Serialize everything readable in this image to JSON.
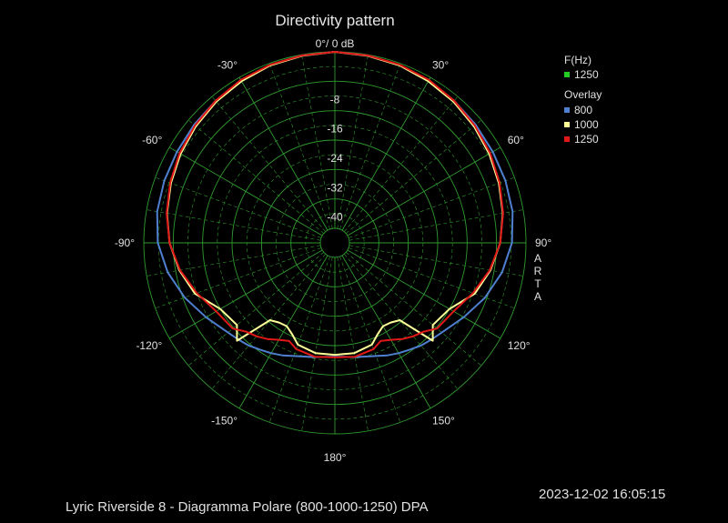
{
  "chart_data": {
    "type": "polar",
    "title": "Directivity pattern",
    "top_label": "0°/ 0 dB",
    "radial_unit": "dB",
    "radial_range": [
      -48,
      0
    ],
    "radial_ticks": [
      {
        "value": -8,
        "label": "-8"
      },
      {
        "value": -16,
        "label": "-16"
      },
      {
        "value": -24,
        "label": "-24"
      },
      {
        "value": -32,
        "label": "-32"
      },
      {
        "value": -40,
        "label": "-40"
      }
    ],
    "angle_labels": [
      {
        "angle": -30,
        "label": "-30°"
      },
      {
        "angle": 30,
        "label": "30°"
      },
      {
        "angle": -60,
        "label": "-60°"
      },
      {
        "angle": 60,
        "label": "60°"
      },
      {
        "angle": -90,
        "label": "-90°"
      },
      {
        "angle": 90,
        "label": "90°"
      },
      {
        "angle": -120,
        "label": "-120°"
      },
      {
        "angle": 120,
        "label": "120°"
      },
      {
        "angle": -150,
        "label": "-150°"
      },
      {
        "angle": 150,
        "label": "150°"
      },
      {
        "angle": 180,
        "label": "180°"
      }
    ],
    "angles": [
      0,
      10,
      20,
      30,
      40,
      50,
      60,
      70,
      80,
      90,
      100,
      110,
      120,
      130,
      135,
      140,
      145,
      150,
      155,
      160,
      170,
      180
    ],
    "series": [
      {
        "name": "800",
        "color": "#4f7fcf",
        "values": [
          0,
          -0.2,
          -0.5,
          -1,
          -1.5,
          -2,
          -2.4,
          -2.6,
          -2.9,
          -3.8,
          -5.8,
          -8.5,
          -11.5,
          -14,
          -14.8,
          -15.5,
          -16.5,
          -17.3,
          -18.2,
          -19.2,
          -20.4,
          -21
        ]
      },
      {
        "name": "1000",
        "color": "#ffff99",
        "values": [
          0,
          -0.3,
          -0.6,
          -1.2,
          -1.8,
          -2.6,
          -3.5,
          -4.5,
          -5.6,
          -7,
          -9,
          -11.5,
          -16,
          -17.2,
          -14.3,
          -24.5,
          -25.5,
          -25.8,
          -24.5,
          -22.5,
          -21.5,
          -21.5
        ]
      },
      {
        "name": "1250",
        "color": "#e01818",
        "values": [
          0,
          -0.2,
          -0.4,
          -0.8,
          -1.5,
          -2.3,
          -3.2,
          -4.3,
          -5.5,
          -7,
          -9.2,
          -12,
          -14.7,
          -15.7,
          -17.8,
          -18.8,
          -20,
          -21.5,
          -22.5,
          -21.2,
          -20.5,
          -20.8
        ]
      }
    ],
    "legend": {
      "header": "F(Hz)",
      "active": {
        "label": "1250",
        "color": "#22cc22"
      },
      "overlay_header": "Overlay",
      "position": "top-right"
    },
    "side_text": [
      "A",
      "R",
      "T",
      "A"
    ],
    "grid": true,
    "grid_color": "#2f9a2f"
  },
  "footer": {
    "caption": "Lyric Riverside 8 - Diagramma Polare (800-1000-1250)      DPA",
    "timestamp": "2023-12-02  16:05:15"
  }
}
